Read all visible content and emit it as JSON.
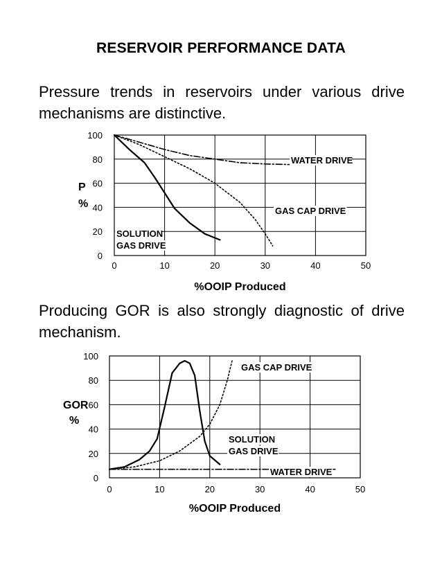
{
  "page": {
    "title": "RESERVOIR PERFORMANCE DATA",
    "paragraph1": "Pressure trends in reservoirs under various drive mechanisms are distinctive.",
    "paragraph2": "Producing GOR is also strongly diagnostic of drive mechanism."
  },
  "chart_data": [
    {
      "type": "line",
      "title": "",
      "xlabel": "%OOIP Produced",
      "ylabel": "P %",
      "xlim": [
        0,
        50
      ],
      "ylim": [
        0,
        100
      ],
      "xticks": [
        0,
        10,
        20,
        30,
        40,
        50
      ],
      "yticks": [
        0,
        20,
        40,
        60,
        80,
        100
      ],
      "grid": true,
      "series": [
        {
          "name": "WATER DRIVE",
          "style": "dashdot",
          "x": [
            0,
            5,
            10,
            15,
            20,
            25,
            30,
            35,
            40,
            45,
            47
          ],
          "y": [
            100,
            94,
            88,
            83,
            80,
            77,
            76,
            75.5,
            75.5,
            75.5,
            75.5
          ]
        },
        {
          "name": "GAS CAP DRIVE",
          "style": "dotted",
          "x": [
            0,
            5,
            10,
            15,
            20,
            25,
            28,
            30,
            31.5
          ],
          "y": [
            100,
            92,
            82,
            72,
            60,
            44,
            30,
            18,
            8
          ]
        },
        {
          "name": "SOLUTION GAS DRIVE",
          "style": "solid",
          "x": [
            0,
            3,
            6,
            8,
            10,
            12,
            15,
            18,
            21
          ],
          "y": [
            100,
            88,
            77,
            65,
            52,
            39,
            27,
            18,
            13
          ]
        }
      ],
      "annotations": [
        {
          "text": "WATER DRIVE"
        },
        {
          "text": "GAS CAP DRIVE"
        },
        {
          "text": "SOLUTION"
        },
        {
          "text": "GAS DRIVE"
        }
      ]
    },
    {
      "type": "line",
      "title": "",
      "xlabel": "%OOIP Produced",
      "ylabel": "GOR %",
      "xlim": [
        0,
        50
      ],
      "ylim": [
        0,
        100
      ],
      "xticks": [
        0,
        10,
        20,
        30,
        40,
        50
      ],
      "yticks": [
        0,
        20,
        40,
        60,
        80,
        100
      ],
      "grid": true,
      "series": [
        {
          "name": "GAS CAP DRIVE",
          "style": "dotted",
          "x": [
            0,
            5,
            10,
            14,
            18,
            20,
            22,
            23.5,
            24.5
          ],
          "y": [
            7,
            9,
            14,
            22,
            34,
            44,
            60,
            80,
            97
          ]
        },
        {
          "name": "SOLUTION GAS DRIVE",
          "style": "solid",
          "x": [
            0,
            3,
            6,
            8,
            9.5,
            11,
            12.5,
            14,
            15,
            16,
            17,
            18,
            19,
            20,
            22
          ],
          "y": [
            7,
            9,
            15,
            22,
            32,
            58,
            86,
            94,
            96,
            94,
            84,
            55,
            30,
            18,
            11
          ]
        },
        {
          "name": "WATER DRIVE",
          "style": "dashdot",
          "x": [
            0,
            10,
            20,
            30,
            40,
            45
          ],
          "y": [
            7,
            7,
            7,
            7,
            7,
            7
          ]
        }
      ],
      "annotations": [
        {
          "text": "GAS CAP DRIVE"
        },
        {
          "text": "SOLUTION"
        },
        {
          "text": "GAS DRIVE"
        },
        {
          "text": "WATER DRIVE"
        }
      ]
    }
  ]
}
